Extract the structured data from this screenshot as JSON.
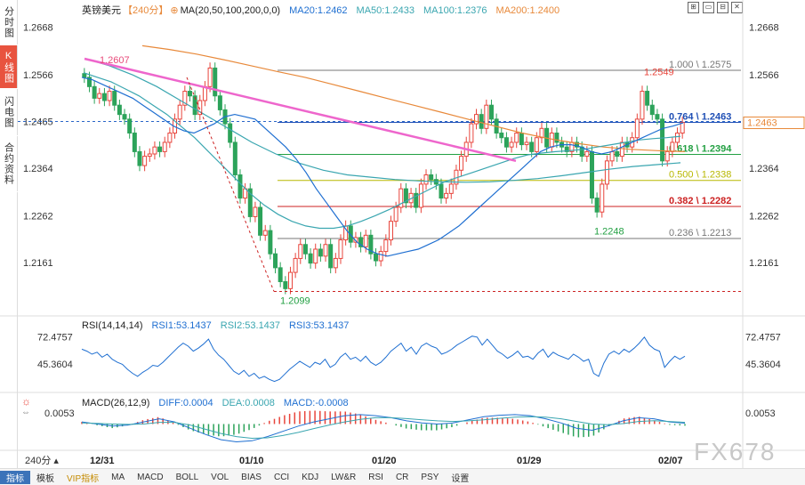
{
  "left_tabs": [
    "分时图",
    "K线图",
    "闪电图",
    "合约资料"
  ],
  "header": {
    "symbol": "英镑美元",
    "period": "【240分】",
    "ma_label": "MA(20,50,100,200,0,0)",
    "ma20": "MA20:1.2462",
    "ma50": "MA50:1.2433",
    "ma100": "MA100:1.2376",
    "ma200": "MA200:1.2400"
  },
  "window_buttons": [
    "⊞",
    "▭",
    "⊟",
    "✕"
  ],
  "colors": {
    "up": "#e8453c",
    "down": "#2ca35a",
    "ma20": "#1f6fd1",
    "ma50": "#3aa6b0",
    "ma100": "#3aa6b0",
    "ma200": "#e8893a",
    "trend": "#ee66cc"
  },
  "chart_data": {
    "type": "candlestick",
    "price_ticks": [
      "1.2668",
      "1.2566",
      "1.2465",
      "1.2364",
      "1.2262",
      "1.2161"
    ],
    "current_price_tag": "1.2463",
    "left_price_label": "1.2465",
    "x_ticks": [
      "12/31",
      "01/10",
      "01/20",
      "01/29",
      "02/07"
    ],
    "annotations": {
      "high_left": "1.2607",
      "low": "1.2099",
      "mid_low": "1.2248",
      "recent_high": "1.2549"
    },
    "fib_levels": [
      {
        "label": "1.000 \\ 1.2575",
        "value": 1.2575,
        "color": "#777777"
      },
      {
        "label": "0.764 \\ 1.2463",
        "value": 1.2463,
        "color": "#1f4fb5"
      },
      {
        "label": "0.618 \\ 1.2394",
        "value": 1.2394,
        "color": "#23a043"
      },
      {
        "label": "0.500 \\ 1.2338",
        "value": 1.2338,
        "color": "#b8b800"
      },
      {
        "label": "0.382 \\ 1.2282",
        "value": 1.2282,
        "color": "#cc2222"
      },
      {
        "label": "0.236 \\ 1.2213",
        "value": 1.2213,
        "color": "#777777"
      }
    ],
    "ylim": [
      1.2075,
      1.2692
    ],
    "closes": [
      1.256,
      1.254,
      1.2515,
      1.2525,
      1.251,
      1.253,
      1.25,
      1.248,
      1.247,
      1.244,
      1.24,
      1.237,
      1.239,
      1.2395,
      1.241,
      1.24,
      1.242,
      1.244,
      1.247,
      1.25,
      1.253,
      1.252,
      1.248,
      1.251,
      1.254,
      1.258,
      1.252,
      1.249,
      1.246,
      1.242,
      1.235,
      1.23,
      1.232,
      1.226,
      1.228,
      1.222,
      1.223,
      1.218,
      1.215,
      1.212,
      1.2105,
      1.214,
      1.217,
      1.22,
      1.218,
      1.216,
      1.219,
      1.2175,
      1.22,
      1.215,
      1.217,
      1.221,
      1.224,
      1.2205,
      1.2215,
      1.2195,
      1.222,
      1.218,
      1.2165,
      1.2185,
      1.221,
      1.225,
      1.228,
      1.232,
      1.229,
      1.231,
      1.228,
      1.233,
      1.235,
      1.234,
      1.233,
      1.23,
      1.231,
      1.233,
      1.236,
      1.239,
      1.242,
      1.246,
      1.248,
      1.245,
      1.25,
      1.247,
      1.244,
      1.243,
      1.241,
      1.242,
      1.244,
      1.2415,
      1.242,
      1.24,
      1.243,
      1.245,
      1.241,
      1.244,
      1.242,
      1.241,
      1.24,
      1.242,
      1.241,
      1.239,
      1.24,
      1.23,
      1.227,
      1.233,
      1.238,
      1.24,
      1.239,
      1.242,
      1.241,
      1.243,
      1.247,
      1.253,
      1.25,
      1.248,
      1.247,
      1.238,
      1.24,
      1.242,
      1.244,
      1.2463
    ],
    "ma20": [
      1.256,
      1.2555,
      1.2545,
      1.2535,
      1.2525,
      1.2515,
      1.25,
      1.2485,
      1.247,
      1.2455,
      1.2445,
      1.244,
      1.245,
      1.246,
      1.2475,
      1.248,
      1.2475,
      1.247,
      1.245,
      1.243,
      1.241,
      1.2385,
      1.2355,
      1.232,
      1.229,
      1.226,
      1.223,
      1.2205,
      1.219,
      1.218,
      1.2175,
      1.218,
      1.2185,
      1.219,
      1.22,
      1.221,
      1.2225,
      1.224,
      1.226,
      1.228,
      1.23,
      1.232,
      1.234,
      1.236,
      1.238,
      1.24,
      1.241,
      1.2415,
      1.2415,
      1.241,
      1.24,
      1.2395,
      1.24,
      1.241,
      1.242,
      1.243,
      1.244,
      1.245,
      1.2455,
      1.2462
    ],
    "ma50": [
      1.257,
      1.256,
      1.255,
      1.2535,
      1.252,
      1.25,
      1.248,
      1.2455,
      1.243,
      1.24,
      1.237,
      1.234,
      1.231,
      1.2285,
      1.2265,
      1.225,
      1.224,
      1.2235,
      1.2235,
      1.224,
      1.225,
      1.2262,
      1.2275,
      1.229,
      1.2305,
      1.232,
      1.2335,
      1.2345,
      1.2355,
      1.2365,
      1.2375,
      1.2385,
      1.2393,
      1.2397,
      1.24,
      1.2402,
      1.2405,
      1.241,
      1.2415,
      1.242,
      1.2425,
      1.2428,
      1.243,
      1.2433
    ],
    "ma100": [
      1.26,
      1.2585,
      1.2565,
      1.254,
      1.251,
      1.248,
      1.245,
      1.242,
      1.2395,
      1.2375,
      1.236,
      1.235,
      1.2345,
      1.234,
      1.2337,
      1.2335,
      1.2334,
      1.2335,
      1.2338,
      1.2342,
      1.2348,
      1.2355,
      1.2362,
      1.2368,
      1.2372,
      1.2376
    ],
    "ma200": [
      1.2628,
      1.262,
      1.261,
      1.2598,
      1.2585,
      1.2572,
      1.256,
      1.2545,
      1.253,
      1.2515,
      1.25,
      1.2485,
      1.247,
      1.2455,
      1.244,
      1.2428,
      1.2418,
      1.241,
      1.2405,
      1.2402,
      1.24
    ],
    "rsi": {
      "label": "RSI(14,14,14)",
      "rsi1": "RSI1:53.1437",
      "rsi2": "RSI2:53.1437",
      "rsi3": "RSI3:53.1437",
      "ticks": [
        "72.4757",
        "45.3604"
      ],
      "ylim": [
        25,
        78
      ],
      "values": [
        60,
        58,
        55,
        57,
        52,
        55,
        50,
        47,
        45,
        40,
        36,
        33,
        37,
        40,
        44,
        43,
        47,
        52,
        57,
        62,
        66,
        63,
        58,
        61,
        65,
        70,
        60,
        54,
        50,
        44,
        38,
        35,
        39,
        33,
        36,
        31,
        33,
        30,
        28,
        30,
        35,
        40,
        44,
        48,
        45,
        42,
        47,
        45,
        50,
        42,
        45,
        52,
        56,
        50,
        52,
        48,
        53,
        47,
        44,
        47,
        52,
        58,
        62,
        66,
        58,
        62,
        55,
        63,
        66,
        63,
        61,
        55,
        57,
        60,
        64,
        67,
        70,
        73,
        72,
        64,
        70,
        64,
        58,
        55,
        51,
        54,
        58,
        52,
        53,
        50,
        56,
        60,
        52,
        57,
        54,
        52,
        50,
        55,
        52,
        48,
        50,
        36,
        33,
        46,
        55,
        58,
        55,
        60,
        57,
        61,
        66,
        72,
        64,
        60,
        58,
        42,
        48,
        53,
        50,
        53
      ]
    },
    "macd": {
      "label": "MACD(26,12,9)",
      "diff": "DIFF:0.0004",
      "dea": "DEA:0.0008",
      "macd": "MACD:-0.0008",
      "tick": "0.0053",
      "ylim": [
        -0.01,
        0.007
      ],
      "diff_values": [
        0.001,
        0.0,
        -0.001,
        -0.0005,
        0.001,
        0.0025,
        0.001,
        -0.002,
        -0.005,
        -0.0075,
        -0.0085,
        -0.008,
        -0.006,
        -0.0035,
        -0.001,
        0.001,
        0.0025,
        0.004,
        0.0045,
        0.004,
        0.003,
        0.0015,
        0.0005,
        0.0,
        0.0005,
        0.002,
        0.0035,
        0.0042,
        0.0045,
        0.004,
        0.0025,
        0.0005,
        -0.002,
        -0.003,
        -0.001,
        0.0015,
        0.003,
        0.0025,
        0.001,
        0.0004
      ],
      "dea_values": [
        0.0005,
        0.0003,
        0.0,
        -0.0002,
        0.0,
        0.0008,
        0.0008,
        -0.0005,
        -0.0025,
        -0.0045,
        -0.006,
        -0.0068,
        -0.0066,
        -0.0055,
        -0.004,
        -0.0022,
        -0.0005,
        0.001,
        0.0022,
        0.003,
        0.003,
        0.0026,
        0.002,
        0.0015,
        0.0012,
        0.0015,
        0.002,
        0.0027,
        0.0033,
        0.0035,
        0.0033,
        0.0025,
        0.0012,
        0.0,
        -0.0003,
        0.0002,
        0.0012,
        0.0016,
        0.0012,
        0.0008
      ]
    }
  },
  "period_selector": "240分",
  "toolbar": [
    "指标",
    "模板",
    "VIP指标",
    "MA",
    "MACD",
    "BOLL",
    "VOL",
    "BIAS",
    "CCI",
    "KDJ",
    "LW&R",
    "RSI",
    "CR",
    "PSY",
    "设置"
  ],
  "watermark": "FX678"
}
